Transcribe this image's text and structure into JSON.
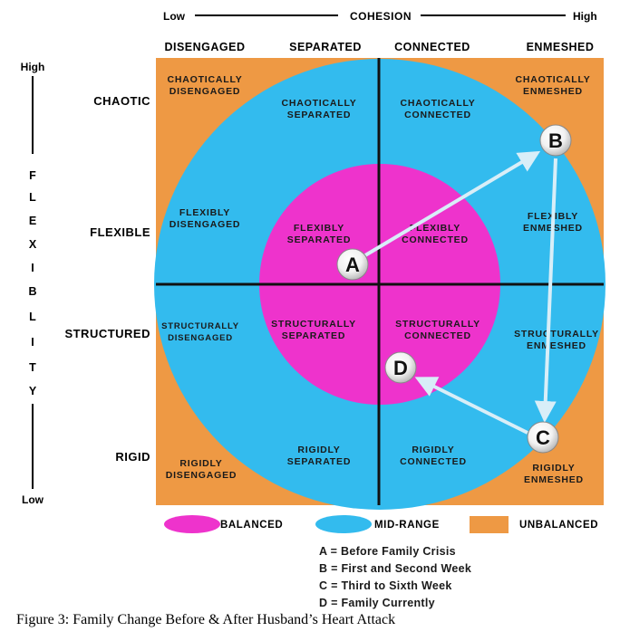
{
  "cohesion": {
    "title": "COHESION",
    "low": "Low",
    "high": "High"
  },
  "flexibility": {
    "letters": [
      "F",
      "L",
      "E",
      "X",
      "I",
      "B",
      "L",
      "I",
      "T",
      "Y"
    ],
    "high": "High",
    "low": "Low"
  },
  "columns": [
    "DISENGAGED",
    "SEPARATED",
    "CONNECTED",
    "ENMESHED"
  ],
  "rows": [
    "CHAOTIC",
    "FLEXIBLE",
    "STRUCTURED",
    "RIGID"
  ],
  "cells": {
    "chaotically_disengaged": [
      "CHAOTICALLY",
      "DISENGAGED"
    ],
    "chaotically_separated": [
      "CHAOTICALLY",
      "SEPARATED"
    ],
    "chaotically_connected": [
      "CHAOTICALLY",
      "CONNECTED"
    ],
    "chaotically_enmeshed": [
      "CHAOTICALLY",
      "ENMESHED"
    ],
    "flexibly_disengaged": [
      "FLEXIBLY",
      "DISENGAGED"
    ],
    "flexibly_separated": [
      "FLEXIBLY",
      "SEPARATED"
    ],
    "flexibly_connected": [
      "FLEXIBLY",
      "CONNECTED"
    ],
    "flexibly_enmeshed": [
      "FLEXIBLY",
      "ENMESHED"
    ],
    "structurally_disengaged": [
      "STRUCTURALLY",
      "DISENGAGED"
    ],
    "structurally_separated": [
      "STRUCTURALLY",
      "SEPARATED"
    ],
    "structurally_connected": [
      "STRUCTURALLY",
      "CONNECTED"
    ],
    "structurally_enmeshed": [
      "STRUCTURALLY",
      "ENMESHED"
    ],
    "rigidly_disengaged": [
      "RIGIDLY",
      "DISENGAGED"
    ],
    "rigidly_separated": [
      "RIGIDLY",
      "SEPARATED"
    ],
    "rigidly_connected": [
      "RIGIDLY",
      "CONNECTED"
    ],
    "rigidly_enmeshed": [
      "RIGIDLY",
      "ENMESHED"
    ]
  },
  "points": {
    "a": "A",
    "b": "B",
    "c": "C",
    "d": "D"
  },
  "legend": {
    "balanced": "BALANCED",
    "midrange": "MID-RANGE",
    "unbalanced": "UNBALANCED"
  },
  "colors": {
    "balanced": "#ee33cc",
    "midrange": "#33bbee",
    "unbalanced": "#ee9944",
    "arrow": "#d8eef8"
  },
  "key": [
    "A = Before Family Crisis",
    "B = First and Second Week",
    "C = Third to Sixth Week",
    "D = Family Currently"
  ],
  "caption": "Figure 3: Family Change Before & After Husband’s Heart Attack"
}
